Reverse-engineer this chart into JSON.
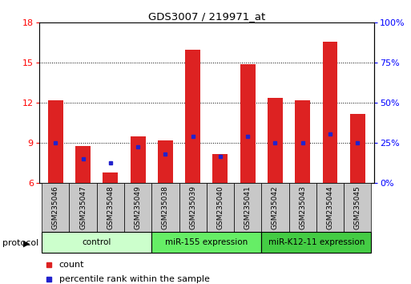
{
  "title": "GDS3007 / 219971_at",
  "samples": [
    "GSM235046",
    "GSM235047",
    "GSM235048",
    "GSM235049",
    "GSM235038",
    "GSM235039",
    "GSM235040",
    "GSM235041",
    "GSM235042",
    "GSM235043",
    "GSM235044",
    "GSM235045"
  ],
  "count_values": [
    12.2,
    8.8,
    6.8,
    9.5,
    9.2,
    16.0,
    8.2,
    14.9,
    12.4,
    12.2,
    16.6,
    11.2
  ],
  "percentile_values": [
    9.0,
    7.8,
    7.5,
    8.7,
    8.2,
    9.5,
    8.0,
    9.5,
    9.0,
    9.0,
    9.7,
    9.0
  ],
  "ymin": 6,
  "ymax": 18,
  "yticks": [
    6,
    9,
    12,
    15,
    18
  ],
  "right_yticks": [
    0,
    25,
    50,
    75,
    100
  ],
  "bar_color": "#dd2222",
  "marker_color": "#2222cc",
  "groups": [
    {
      "label": "control",
      "start": 0,
      "end": 4,
      "color": "#ccffcc"
    },
    {
      "label": "miR-155 expression",
      "start": 4,
      "end": 8,
      "color": "#66ee66"
    },
    {
      "label": "miR-K12-11 expression",
      "start": 8,
      "end": 12,
      "color": "#44cc44"
    }
  ],
  "protocol_label": "protocol",
  "legend_count_label": "count",
  "legend_percentile_label": "percentile rank within the sample",
  "bar_width": 0.55,
  "cell_color": "#c8c8c8"
}
